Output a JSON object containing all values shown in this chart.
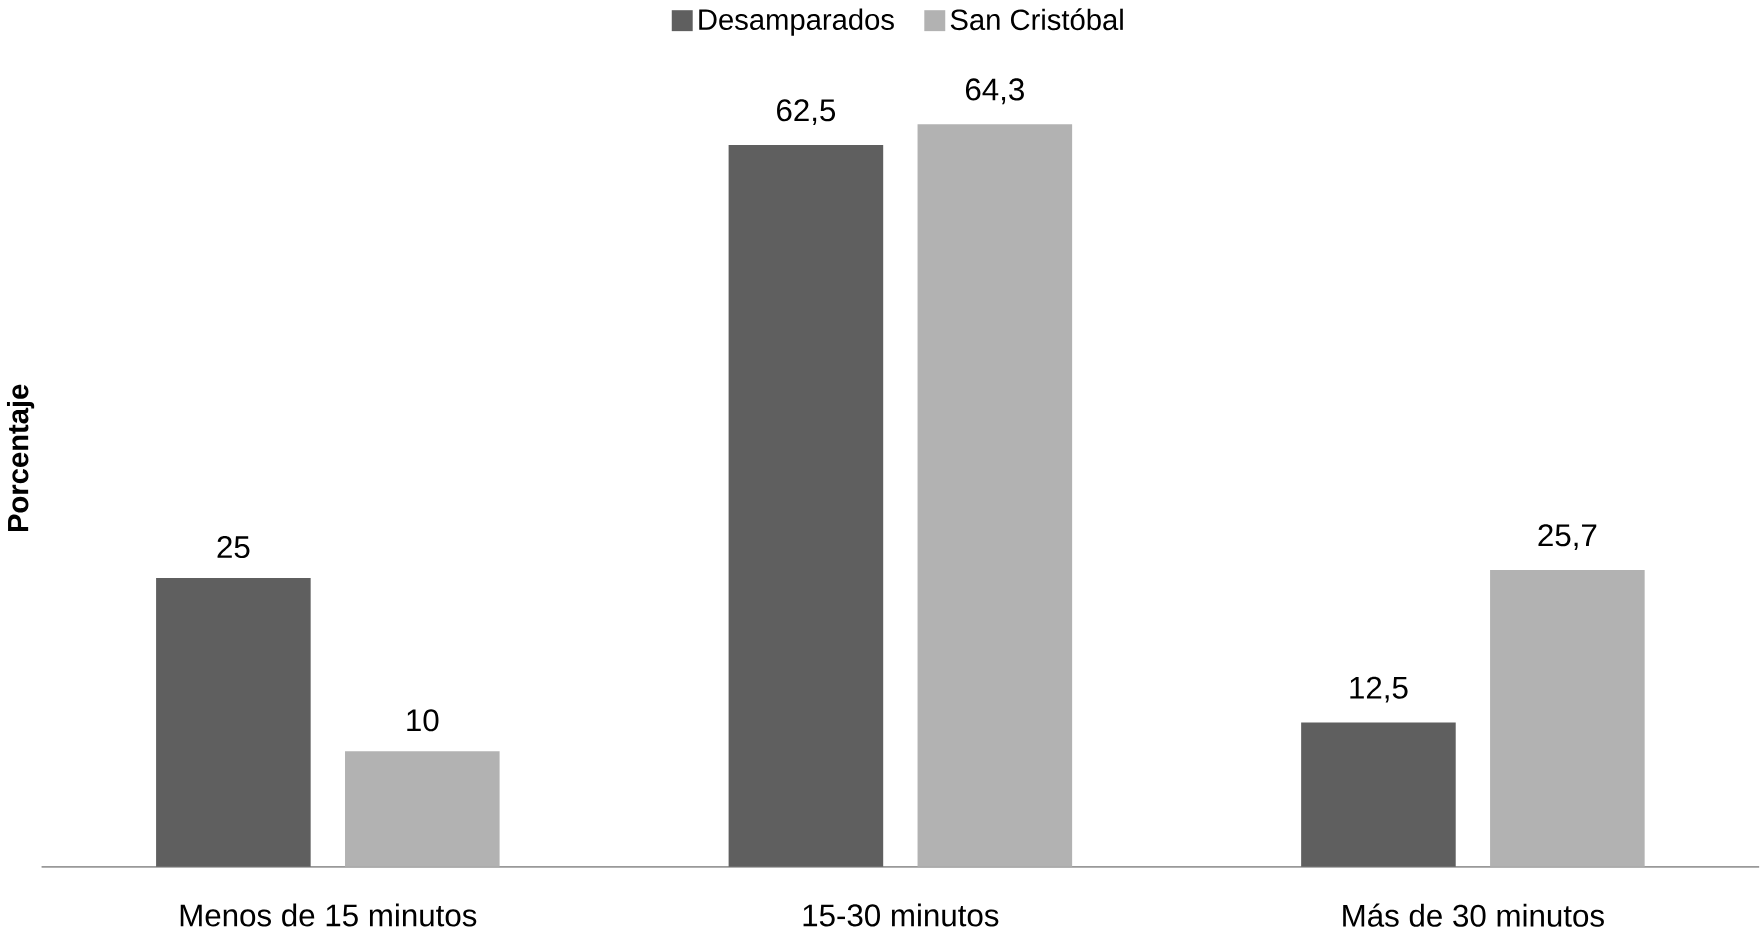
{
  "chart_data": {
    "type": "bar",
    "ylabel": "Porcentaje",
    "categories": [
      "Menos de 15 minutos",
      "15-30 minutos",
      "Más de 30 minutos"
    ],
    "series": [
      {
        "name": "Desamparados",
        "color": "#5f5f5f",
        "values": [
          25,
          62.5,
          12.5
        ],
        "value_labels": [
          "25",
          "62,5",
          "12,5"
        ]
      },
      {
        "name": "San Cristóbal",
        "color": "#b2b2b2",
        "values": [
          10,
          64.3,
          25.7
        ],
        "value_labels": [
          "10",
          "64,3",
          "25,7"
        ]
      }
    ],
    "legend": "top"
  }
}
